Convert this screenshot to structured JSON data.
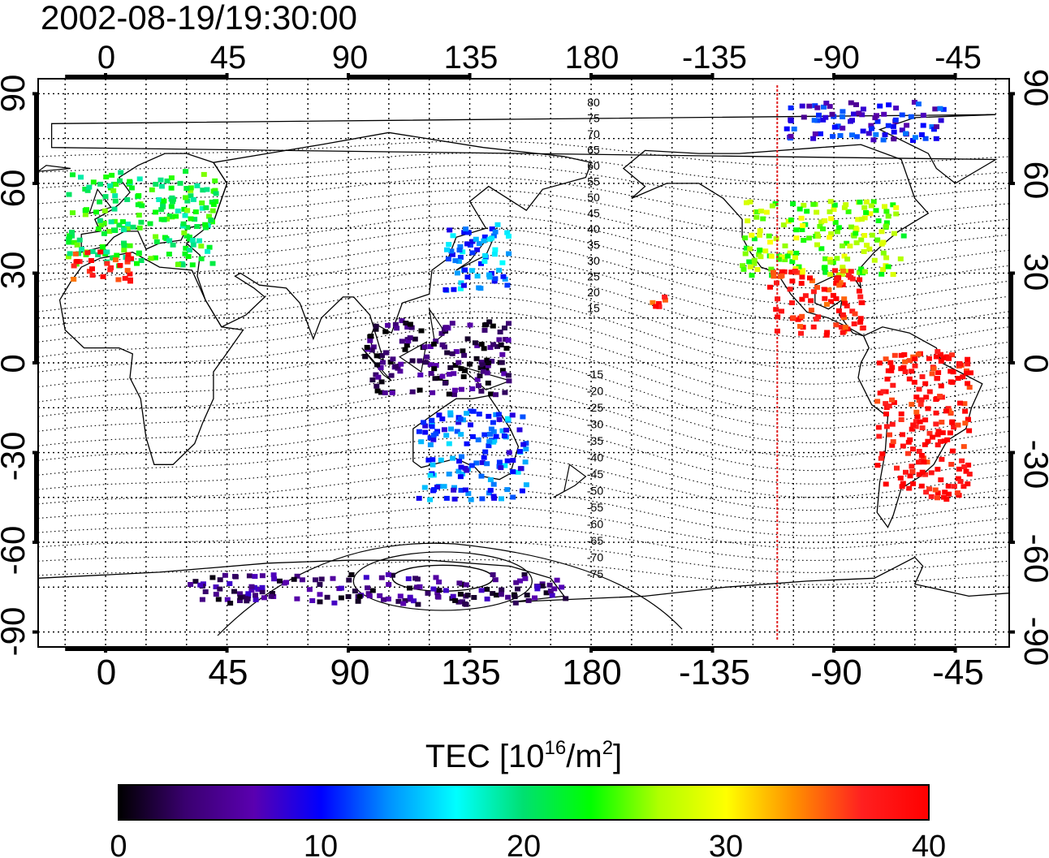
{
  "title": "2002-08-19/19:30:00",
  "axes": {
    "x_top_ticks": [
      "0",
      "45",
      "90",
      "135",
      "180",
      "-135",
      "-90",
      "-45"
    ],
    "x_bottom_ticks": [
      "0",
      "45",
      "90",
      "135",
      "180",
      "-135",
      "-90",
      "-45"
    ],
    "y_left_ticks": [
      "90",
      "60",
      "30",
      "0",
      "-30",
      "-60",
      "-90"
    ],
    "y_right_ticks": [
      "90",
      "60",
      "30",
      "0",
      "-30",
      "-60",
      "-90"
    ],
    "lon_range": [
      -25,
      335
    ],
    "lat_range": [
      -95,
      95
    ],
    "grid": true
  },
  "contours": {
    "north_labels": [
      "80",
      "75",
      "70",
      "65",
      "60",
      "55",
      "50",
      "45",
      "40",
      "35",
      "30",
      "25",
      "20",
      "15"
    ],
    "south_labels": [
      "-15",
      "-20",
      "-25",
      "-30",
      "-35",
      "-40",
      "-45",
      "-50",
      "-55",
      "-60",
      "-65",
      "-70",
      "-75"
    ]
  },
  "marker_line": {
    "lon": -111,
    "color": "#e02020"
  },
  "colorbar": {
    "title_prefix": "TEC  [10",
    "title_sup1": "16",
    "title_mid": "/m",
    "title_sup2": "2",
    "title_suffix": "]",
    "ticks": [
      "0",
      "10",
      "20",
      "30",
      "40"
    ],
    "min": 0,
    "max": 40,
    "colors": [
      "#000000",
      "#3a0070",
      "#5a00b0",
      "#0000ff",
      "#0090ff",
      "#00ffff",
      "#00e070",
      "#00ff00",
      "#b0ff00",
      "#ffff00",
      "#ff9000",
      "#ff2020",
      "#ff0000"
    ]
  },
  "tec_clusters": [
    {
      "region": "Europe",
      "lon_range": [
        -15,
        40
      ],
      "lat_range": [
        33,
        65
      ],
      "tec": 22
    },
    {
      "region": "Mediterranean",
      "lon_range": [
        -15,
        10
      ],
      "lat_range": [
        28,
        38
      ],
      "tec": 37
    },
    {
      "region": "Japan",
      "lon_range": [
        125,
        150
      ],
      "lat_range": [
        25,
        48
      ],
      "tec": 13
    },
    {
      "region": "Southeast Asia",
      "lon_range": [
        95,
        150
      ],
      "lat_range": [
        -10,
        15
      ],
      "tec": 3
    },
    {
      "region": "Australia",
      "lon_range": [
        115,
        155
      ],
      "lat_range": [
        -45,
        -15
      ],
      "tec": 12
    },
    {
      "region": "North America",
      "lon_range": [
        -125,
        -65
      ],
      "lat_range": [
        30,
        55
      ],
      "tec": 26
    },
    {
      "region": "Central America",
      "lon_range": [
        -115,
        -80
      ],
      "lat_range": [
        10,
        32
      ],
      "tec": 38
    },
    {
      "region": "South America",
      "lon_range": [
        -75,
        -40
      ],
      "lat_range": [
        -45,
        5
      ],
      "tec": 39
    },
    {
      "region": "Antarctica",
      "lon_range": [
        30,
        170
      ],
      "lat_range": [
        -80,
        -70
      ],
      "tec": 4
    },
    {
      "region": "Arctic",
      "lon_range": [
        -110,
        -50
      ],
      "lat_range": [
        75,
        88
      ],
      "tec": 9
    },
    {
      "region": "Hawaii",
      "lon_range": [
        -160,
        -152
      ],
      "lat_range": [
        18,
        25
      ],
      "tec": 38
    }
  ]
}
